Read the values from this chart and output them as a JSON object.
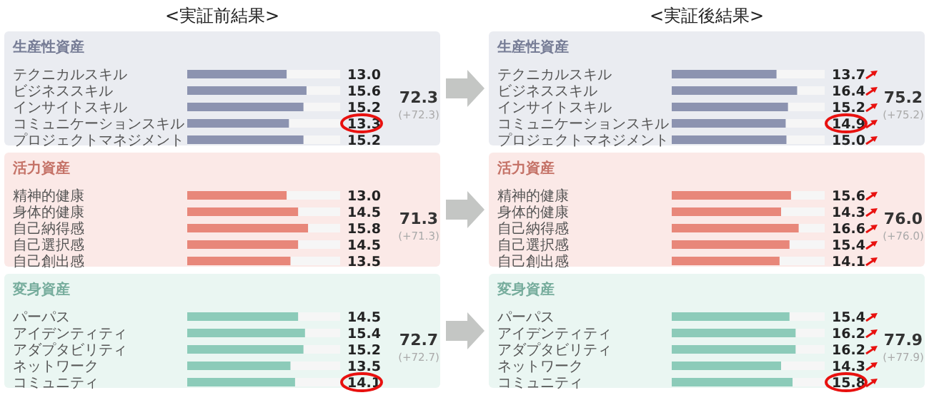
{
  "chart_data": [
    {
      "type": "bar",
      "orientation": "horizontal",
      "title": "<実証前結果>",
      "subtitle": "生産性資産",
      "categories": [
        "テクニカルスキル",
        "ビジネススキル",
        "インサイトスキル",
        "コミュニケーションスキル",
        "プロジェクトマネジメント"
      ],
      "values": [
        13.0,
        15.6,
        15.2,
        13.3,
        15.2
      ],
      "value_labels": [
        "13.0",
        "15.6",
        "15.2",
        "13.3",
        "15.2"
      ],
      "color": "#8c93b0",
      "xlim": [
        0,
        20
      ],
      "tick_labels": "y",
      "annotations": [
        "72.3",
        "(+72.3)"
      ]
    },
    {
      "type": "bar",
      "orientation": "horizontal",
      "title": "<実証後結果>",
      "subtitle": "生産性資産",
      "categories": [
        "テクニカルスキル",
        "ビジネススキル",
        "インサイトスキル",
        "コミュニケーションスキル",
        "プロジェクトマネジメント"
      ],
      "values": [
        13.7,
        16.4,
        15.2,
        14.9,
        15.0
      ],
      "value_labels": [
        "13.7",
        "16.4",
        "15.2",
        "14.9",
        "15.0"
      ],
      "color": "#8c93b0",
      "xlim": [
        0,
        20
      ],
      "tick_labels": "y",
      "annotations": [
        "75.2",
        "(+75.2)"
      ]
    },
    {
      "type": "bar",
      "orientation": "horizontal",
      "subtitle": "活力資産",
      "categories": [
        "精神的健康",
        "身体的健康",
        "自己納得感",
        "自己選択感",
        "自己創出感"
      ],
      "values": [
        13.0,
        14.5,
        15.8,
        14.5,
        13.5
      ],
      "value_labels": [
        "13.0",
        "14.5",
        "15.8",
        "14.5",
        "13.5"
      ],
      "color": "#e8877a",
      "xlim": [
        0,
        20
      ],
      "tick_labels": "y",
      "annotations": [
        "71.3",
        "(+71.3)"
      ]
    },
    {
      "type": "bar",
      "orientation": "horizontal",
      "subtitle": "活力資産",
      "categories": [
        "精神的健康",
        "身体的健康",
        "自己納得感",
        "自己選択感",
        "自己創出感"
      ],
      "values": [
        15.6,
        14.3,
        16.6,
        15.4,
        14.1
      ],
      "value_labels": [
        "15.6",
        "14.3",
        "16.6",
        "15.4",
        "14.1"
      ],
      "color": "#e8877a",
      "xlim": [
        0,
        20
      ],
      "tick_labels": "y",
      "annotations": [
        "76.0",
        "(+76.0)"
      ]
    },
    {
      "type": "bar",
      "orientation": "horizontal",
      "subtitle": "変身資産",
      "categories": [
        "パーパス",
        "アイデンティティ",
        "アダプタビリティ",
        "ネットワーク",
        "コミュニティ"
      ],
      "values": [
        14.5,
        15.4,
        15.2,
        13.5,
        14.1
      ],
      "value_labels": [
        "14.5",
        "15.4",
        "15.2",
        "13.5",
        "14.1"
      ],
      "color": "#8ccbb9",
      "xlim": [
        0,
        20
      ],
      "tick_labels": "y",
      "annotations": [
        "72.7",
        "(+72.7)"
      ]
    },
    {
      "type": "bar",
      "orientation": "horizontal",
      "subtitle": "変身資産",
      "categories": [
        "パーパス",
        "アイデンティティ",
        "アダプタビリティ",
        "ネットワーク",
        "コミュニティ"
      ],
      "values": [
        15.4,
        16.2,
        16.2,
        14.3,
        15.8
      ],
      "value_labels": [
        "15.4",
        "16.2",
        "16.2",
        "14.3",
        "15.8"
      ],
      "color": "#8ccbb9",
      "xlim": [
        0,
        20
      ],
      "tick_labels": "y",
      "annotations": [
        "77.9",
        "(+77.9)"
      ]
    }
  ]
}
